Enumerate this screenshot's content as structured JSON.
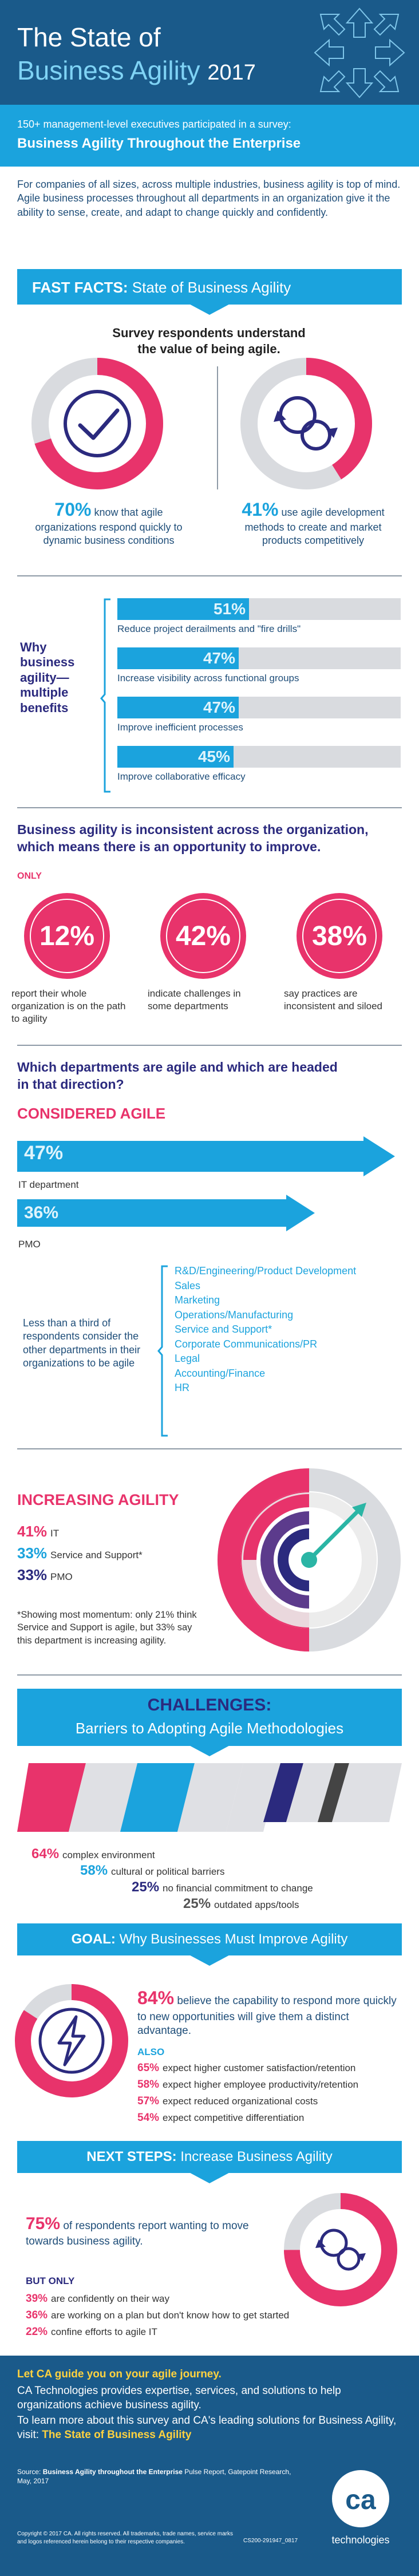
{
  "header": {
    "title_line1": "The State of",
    "title_line2": "Business Agility",
    "year": "2017",
    "subhead_line1": "150+ management-level executives participated in a survey:",
    "subhead_line2": "Business Agility Throughout the Enterprise",
    "intro": "For companies of all sizes, across multiple industries, business agility is top of mind. Agile business processes throughout all departments in an organization give it the ability to sense, create, and adapt to change quickly and confidently."
  },
  "fast_facts": {
    "banner_bold": "FAST FACTS:",
    "banner_rest": "State of Business Agility",
    "value_heading": "Survey respondents understand the value of being agile.",
    "stat1_pct": "70%",
    "stat1_text": "know that agile organizations respond quickly to dynamic business conditions",
    "stat2_pct": "41%",
    "stat2_text": "use agile development methods to create and market products competitively",
    "why_heading": "Why business agility— multiple benefits",
    "benefits": [
      {
        "pct": "51%",
        "value": 51,
        "label": "Reduce project derailments and \"fire drills\""
      },
      {
        "pct": "47%",
        "value": 47,
        "label": "Increase visibility across functional groups"
      },
      {
        "pct": "47%",
        "value": 47,
        "label": "Improve inefficient processes"
      },
      {
        "pct": "45%",
        "value": 45,
        "label": "Improve collaborative efficacy"
      }
    ]
  },
  "inconsistent": {
    "heading": "Business agility is inconsistent across the organization, which means there is an opportunity to improve.",
    "only": "ONLY",
    "circles": [
      {
        "pct": "12%",
        "text": "report their whole organization is on the path to agility"
      },
      {
        "pct": "42%",
        "text": "indicate challenges in some departments"
      },
      {
        "pct": "38%",
        "text": "say practices are inconsistent and siloed"
      }
    ]
  },
  "departments": {
    "heading": "Which departments are agile and which are headed in that direction?",
    "considered": "CONSIDERED AGILE",
    "it_pct": "47%",
    "it_label": "IT department",
    "pmo_pct": "36%",
    "pmo_label": "PMO",
    "less_text": "Less than a third of respondents consider the other departments in their organizations to be agile",
    "dept_list": [
      "R&D/Engineering/Product Development",
      "Sales",
      "Marketing",
      "Operations/Manufacturing",
      "Service and Support*",
      "Corporate Communications/PR",
      "Legal",
      "Accounting/Finance",
      "HR"
    ]
  },
  "increasing": {
    "heading": "INCREASING AGILITY",
    "rows": [
      {
        "pct": "41%",
        "label": "IT"
      },
      {
        "pct": "33%",
        "label": "Service and Support*"
      },
      {
        "pct": "33%",
        "label": "PMO"
      }
    ],
    "note": "*Showing most momentum: only 21% think Service and Support is agile, but 33% say this department is increasing agility."
  },
  "challenges": {
    "banner_bold": "CHALLENGES:",
    "banner_rest": "Barriers to Adopting Agile Methodologies",
    "items": [
      {
        "pct": "64%",
        "label": "complex environment"
      },
      {
        "pct": "58%",
        "label": "cultural or political barriers"
      },
      {
        "pct": "25%",
        "label": "no financial commitment to change"
      },
      {
        "pct": "25%",
        "label": "outdated apps/tools"
      }
    ]
  },
  "goal": {
    "banner_bold": "GOAL:",
    "banner_rest": "Why Businesses Must Improve Agility",
    "main_pct": "84%",
    "main_text": "believe the capability to respond more quickly to new opportunities will give them a distinct advantage.",
    "also": "ALSO",
    "items": [
      {
        "pct": "65%",
        "label": "expect higher customer satisfaction/retention"
      },
      {
        "pct": "58%",
        "label": "expect higher employee productivity/retention"
      },
      {
        "pct": "57%",
        "label": "expect reduced organizational costs"
      },
      {
        "pct": "54%",
        "label": "expect competitive differentiation"
      }
    ]
  },
  "next_steps": {
    "banner_bold": "NEXT STEPS:",
    "banner_rest": "Increase Business Agility",
    "main_pct": "75%",
    "main_text": "of respondents report wanting to move towards business agility.",
    "but_only": "BUT ONLY",
    "items": [
      {
        "pct": "39%",
        "label": "are confidently on their way"
      },
      {
        "pct": "36%",
        "label": "are working on a plan but don't know how to get started"
      },
      {
        "pct": "22%",
        "label": "confine efforts to agile IT"
      }
    ]
  },
  "footer": {
    "cta_heading": "Let CA guide you on your agile journey.",
    "cta_text": "CA Technologies provides expertise, services, and solutions to help organizations achieve business agility.",
    "cta_more": "To learn more about this survey and CA's leading solutions for Business Agility, visit:",
    "cta_link": "The State of Business Agility",
    "source_prefix": "Source:",
    "source_bold": "Business Agility throughout the Enterprise",
    "source_rest": "Pulse Report, Gatepoint Research, May, 2017",
    "copyright": "Copyright © 2017 CA. All rights reserved. All trademarks, trade names, service marks and logos referenced herein belong to their respective companies.",
    "code": "CS200-291947_0817",
    "logo_letters": "ca",
    "logo_word": "technologies"
  },
  "colors": {
    "primary_blue": "#1ba3dd",
    "dark_blue": "#1a5a8a",
    "pink": "#e8336b",
    "navy": "#2b2a7e",
    "purple": "#5c3b8c",
    "gray": "#d9dbdf",
    "teal": "#2bb5a5"
  }
}
